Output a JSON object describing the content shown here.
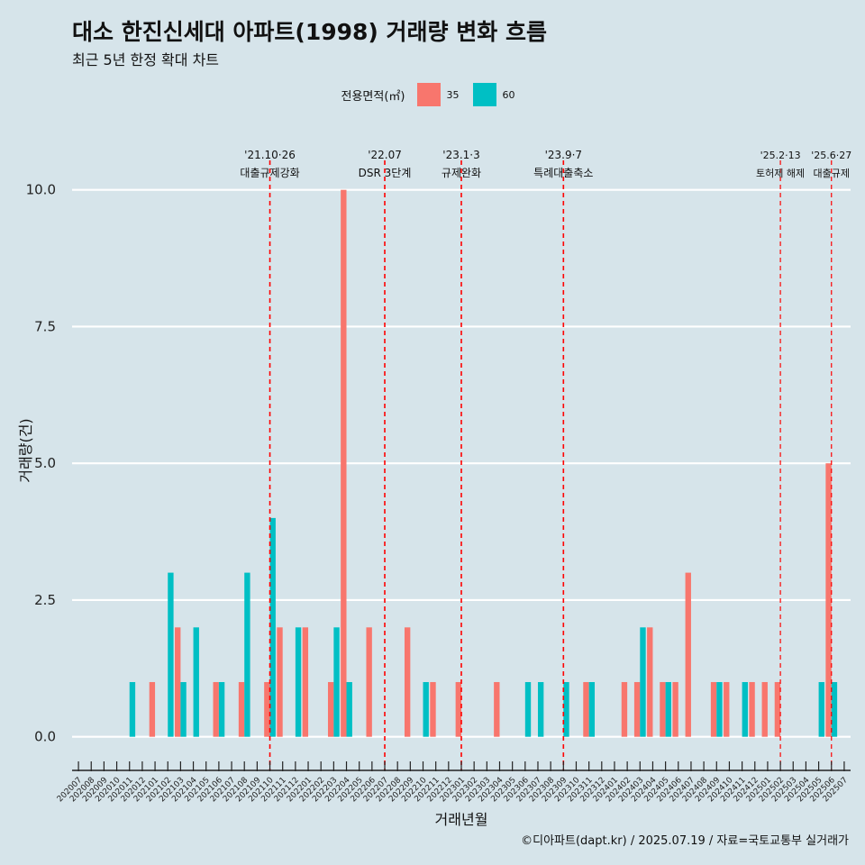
{
  "title": "대소 한진신세대 아파트(1998) 거래량 변화 흐름",
  "subtitle": "최근 5년 한정 확대 차트",
  "caption": "©디아파트(dapt.kr) / 2025.07.19 / 자료=국토교통부 실거래가",
  "legend": {
    "title": "전용면적(㎡)",
    "items": [
      {
        "label": "35",
        "color": "#f8766d"
      },
      {
        "label": "60",
        "color": "#00bfc4"
      }
    ]
  },
  "chart_data": {
    "type": "bar",
    "title": "대소 한진신세대 아파트(1998) 거래량 변화 흐름",
    "xlabel": "거래년월",
    "ylabel": "거래량(건)",
    "ylim": [
      -0.45,
      11.0
    ],
    "yticks": [
      0.0,
      2.5,
      5.0,
      7.5,
      10.0
    ],
    "ytick_labels": [
      "0.0",
      "2.5",
      "5.0",
      "7.5",
      "10.0"
    ],
    "categories": [
      "202007",
      "202008",
      "202009",
      "202010",
      "202011",
      "202012",
      "202101",
      "202102",
      "202103",
      "202104",
      "202105",
      "202106",
      "202107",
      "202108",
      "202109",
      "202110",
      "202111",
      "202112",
      "202201",
      "202202",
      "202203",
      "202204",
      "202205",
      "202206",
      "202207",
      "202208",
      "202209",
      "202210",
      "202211",
      "202212",
      "202301",
      "202302",
      "202303",
      "202304",
      "202305",
      "202306",
      "202307",
      "202308",
      "202309",
      "202310",
      "202311",
      "202312",
      "202401",
      "202402",
      "202403",
      "202404",
      "202405",
      "202406",
      "202407",
      "202408",
      "202409",
      "202410",
      "202411",
      "202412",
      "202501",
      "202502",
      "202503",
      "202504",
      "202505",
      "202506",
      "202507"
    ],
    "series": [
      {
        "name": "35",
        "color": "#f8766d",
        "values": [
          0,
          0,
          0,
          0,
          0,
          0,
          1,
          0,
          2,
          0,
          0,
          1,
          0,
          1,
          0,
          1,
          2,
          0,
          2,
          0,
          1,
          10,
          0,
          2,
          0,
          0,
          2,
          0,
          1,
          0,
          1,
          0,
          0,
          1,
          0,
          0,
          0,
          0,
          0,
          0,
          1,
          0,
          0,
          1,
          1,
          2,
          1,
          1,
          3,
          0,
          1,
          1,
          0,
          1,
          1,
          1,
          0,
          0,
          0,
          5,
          0
        ]
      },
      {
        "name": "60",
        "color": "#00bfc4",
        "values": [
          0,
          0,
          0,
          0,
          1,
          0,
          0,
          3,
          1,
          2,
          0,
          1,
          0,
          3,
          0,
          4,
          0,
          2,
          0,
          0,
          2,
          1,
          0,
          0,
          0,
          0,
          0,
          1,
          0,
          0,
          0,
          0,
          0,
          0,
          0,
          1,
          1,
          0,
          1,
          0,
          1,
          0,
          0,
          0,
          2,
          0,
          1,
          0,
          0,
          0,
          1,
          0,
          1,
          0,
          0,
          0,
          0,
          0,
          1,
          1,
          0
        ]
      }
    ],
    "events": [
      {
        "month": "202110",
        "date": "'21.10·26",
        "label": "대출규제강화"
      },
      {
        "month": "202207",
        "date": "'22.07",
        "label": "DSR 3단계"
      },
      {
        "month": "202301",
        "date": "'23.1·3",
        "label": "규제완화"
      },
      {
        "month": "202309",
        "date": "'23.9·7",
        "label": "특례대출축소"
      },
      {
        "month": "202502",
        "date": "'25.2·13",
        "label": "토허제 해제"
      },
      {
        "month": "202506",
        "date": "'25.6·27",
        "label": "대출규제"
      }
    ]
  }
}
